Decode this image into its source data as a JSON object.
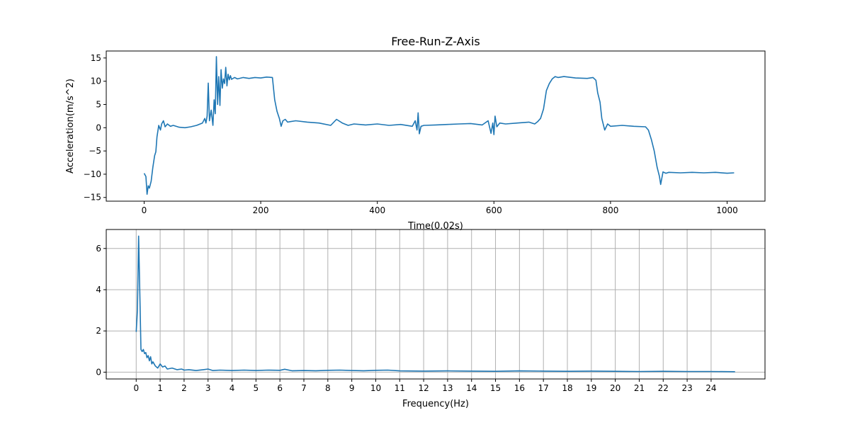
{
  "chart_data": [
    {
      "type": "line",
      "title": "Free-Run-Z-Axis",
      "xlabel": "Time(0.02s)",
      "ylabel": "Acceleration(m/s^2)",
      "xlim": [
        -65,
        1065
      ],
      "ylim": [
        -15.8,
        16.5
      ],
      "xticks": [
        0,
        200,
        400,
        600,
        800,
        1000
      ],
      "xtick_labels": [
        "0",
        "200",
        "400",
        "600",
        "800",
        "1000"
      ],
      "yticks": [
        -15,
        -10,
        -5,
        0,
        5,
        10,
        15
      ],
      "ytick_labels": [
        "−15",
        "−10",
        "−5",
        "0",
        "5",
        "10",
        "15"
      ],
      "grid": false,
      "color": "#1f77b4",
      "series": [
        {
          "x": [
            0,
            3,
            5,
            7,
            9,
            12,
            15,
            18,
            20,
            22,
            25,
            28,
            30,
            33,
            36,
            40,
            45,
            50,
            60,
            70,
            80,
            90,
            100,
            104,
            106,
            108,
            110,
            112,
            115,
            118,
            120,
            122,
            124,
            126,
            128,
            130,
            132,
            134,
            136,
            138,
            140,
            142,
            144,
            146,
            148,
            150,
            155,
            160,
            170,
            180,
            190,
            200,
            210,
            220,
            224,
            228,
            232,
            235,
            238,
            242,
            246,
            250,
            260,
            280,
            300,
            320,
            330,
            340,
            350,
            360,
            380,
            400,
            420,
            440,
            460,
            465,
            468,
            470,
            472,
            475,
            480,
            500,
            520,
            540,
            560,
            580,
            590,
            595,
            598,
            600,
            602,
            605,
            610,
            620,
            640,
            660,
            670,
            675,
            680,
            685,
            690,
            695,
            700,
            705,
            710,
            720,
            740,
            760,
            770,
            775,
            778,
            782,
            785,
            790,
            795,
            800,
            820,
            840,
            860,
            865,
            870,
            875,
            880,
            884,
            886,
            890,
            895,
            900,
            920,
            940,
            960,
            980,
            1000,
            1012
          ],
          "y": [
            -9.8,
            -10.5,
            -14.3,
            -12.5,
            -13.0,
            -11.5,
            -8.5,
            -6.0,
            -5.2,
            -2.0,
            0.5,
            -0.5,
            0.8,
            1.5,
            0.2,
            0.8,
            0.3,
            0.5,
            0.1,
            0.0,
            0.2,
            0.5,
            1.0,
            2.0,
            1.0,
            2.5,
            9.6,
            1.5,
            3.8,
            0.5,
            6.0,
            3.0,
            15.3,
            5.0,
            11.0,
            4.8,
            12.5,
            8.5,
            10.5,
            9.5,
            13.0,
            9.0,
            11.5,
            10.3,
            11.2,
            10.4,
            10.8,
            10.5,
            10.8,
            10.6,
            10.8,
            10.7,
            10.9,
            10.8,
            6.0,
            3.5,
            2.0,
            0.3,
            1.5,
            1.8,
            1.2,
            1.3,
            1.5,
            1.2,
            1.0,
            0.5,
            1.8,
            1.0,
            0.5,
            0.8,
            0.6,
            0.8,
            0.5,
            0.7,
            0.3,
            1.5,
            -0.5,
            3.2,
            -1.3,
            0.3,
            0.5,
            0.6,
            0.7,
            0.8,
            0.9,
            0.6,
            1.5,
            -1.2,
            1.0,
            -1.5,
            2.5,
            0.2,
            1.0,
            0.8,
            1.0,
            1.2,
            0.8,
            1.3,
            2.0,
            4.0,
            8.0,
            9.5,
            10.5,
            11.0,
            10.8,
            11.0,
            10.7,
            10.6,
            10.8,
            10.2,
            7.5,
            5.5,
            2.0,
            -0.5,
            0.8,
            0.3,
            0.5,
            0.3,
            0.2,
            -0.5,
            -2.5,
            -5.0,
            -8.5,
            -10.5,
            -12.2,
            -9.5,
            -9.8,
            -9.6,
            -9.7,
            -9.6,
            -9.7,
            -9.6,
            -9.8,
            -9.7
          ]
        }
      ]
    },
    {
      "type": "line",
      "title": "",
      "xlabel": "Frequency(Hz)",
      "ylabel": "",
      "xlim": [
        -1.25,
        26.25
      ],
      "ylim": [
        -0.33,
        6.92
      ],
      "xticks": [
        0,
        1,
        2,
        3,
        4,
        5,
        6,
        7,
        8,
        9,
        10,
        11,
        12,
        13,
        14,
        15,
        16,
        17,
        18,
        19,
        20,
        21,
        22,
        23,
        24
      ],
      "xtick_labels": [
        "0",
        "1",
        "2",
        "3",
        "4",
        "5",
        "6",
        "7",
        "8",
        "9",
        "10",
        "11",
        "12",
        "13",
        "14",
        "15",
        "16",
        "17",
        "18",
        "19",
        "20",
        "21",
        "22",
        "23",
        "24"
      ],
      "yticks": [
        0,
        2,
        4,
        6
      ],
      "ytick_labels": [
        "0",
        "2",
        "4",
        "6"
      ],
      "grid": true,
      "color": "#1f77b4",
      "series": [
        {
          "x": [
            0,
            0.05,
            0.1,
            0.15,
            0.2,
            0.25,
            0.3,
            0.35,
            0.4,
            0.45,
            0.5,
            0.55,
            0.6,
            0.65,
            0.7,
            0.8,
            0.9,
            1.0,
            1.1,
            1.2,
            1.3,
            1.5,
            1.7,
            1.9,
            2.0,
            2.2,
            2.5,
            2.8,
            3.0,
            3.2,
            3.5,
            4.0,
            4.5,
            5.0,
            5.5,
            6.0,
            6.2,
            6.5,
            7.0,
            7.5,
            8.0,
            8.5,
            9.0,
            9.5,
            10.0,
            10.5,
            11.0,
            12.0,
            13.0,
            14.0,
            15.0,
            16.0,
            17.0,
            18.0,
            19.0,
            20.0,
            21.0,
            22.0,
            23.0,
            24.0,
            25.0
          ],
          "y": [
            1.95,
            3.0,
            6.6,
            4.0,
            1.1,
            1.0,
            1.1,
            0.9,
            0.95,
            0.7,
            0.8,
            0.55,
            0.75,
            0.4,
            0.5,
            0.3,
            0.2,
            0.4,
            0.25,
            0.3,
            0.15,
            0.2,
            0.12,
            0.15,
            0.1,
            0.12,
            0.08,
            0.12,
            0.15,
            0.08,
            0.1,
            0.08,
            0.1,
            0.08,
            0.1,
            0.09,
            0.14,
            0.07,
            0.08,
            0.07,
            0.09,
            0.1,
            0.08,
            0.07,
            0.09,
            0.1,
            0.06,
            0.05,
            0.06,
            0.05,
            0.04,
            0.06,
            0.05,
            0.04,
            0.05,
            0.04,
            0.03,
            0.04,
            0.03,
            0.03,
            0.02
          ]
        }
      ]
    }
  ]
}
